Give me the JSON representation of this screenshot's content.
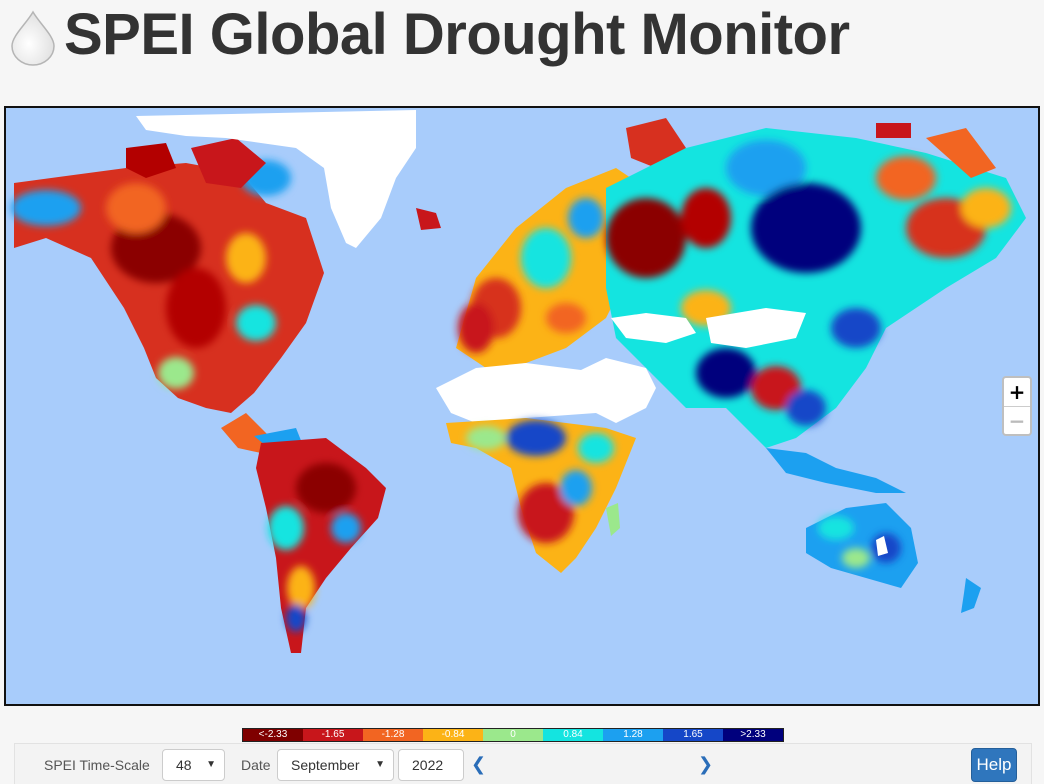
{
  "header": {
    "title": "SPEI Global Drought Monitor",
    "logo_icon": "water-drop-icon"
  },
  "map": {
    "ocean_color": "#a8ccfb",
    "zoom_in_label": "+",
    "zoom_out_label": "−"
  },
  "legend": {
    "items": [
      {
        "label": "<-2.33",
        "color": "#7f0000"
      },
      {
        "label": "-1.65",
        "color": "#c8161b"
      },
      {
        "label": "-1.28",
        "color": "#f26522"
      },
      {
        "label": "-0.84",
        "color": "#fcb316"
      },
      {
        "label": "0",
        "color": "#9be88c"
      },
      {
        "label": "0.84",
        "color": "#14e4e0"
      },
      {
        "label": "1.28",
        "color": "#1ca0f0"
      },
      {
        "label": "1.65",
        "color": "#1547c8"
      },
      {
        "label": ">2.33",
        "color": "#00007d"
      }
    ]
  },
  "controls": {
    "timescale_label": "SPEI Time-Scale",
    "timescale_value": "48",
    "date_label": "Date",
    "month_value": "September",
    "year_value": "2022",
    "prev_icon": "chevron-left-icon",
    "next_icon": "chevron-right-icon",
    "help_label": "Help"
  }
}
